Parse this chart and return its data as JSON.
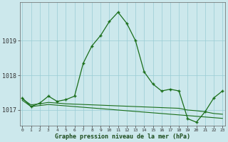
{
  "title": "Graphe pression niveau de la mer (hPa)",
  "background_color": "#cce8ec",
  "grid_color": "#99ccd4",
  "line_color": "#1a6e1a",
  "x": [
    0,
    1,
    2,
    3,
    4,
    5,
    6,
    7,
    8,
    9,
    10,
    11,
    12,
    13,
    14,
    15,
    16,
    17,
    18,
    19,
    20,
    21,
    22,
    23
  ],
  "y_line1": [
    1017.35,
    1017.1,
    1017.2,
    1017.4,
    1017.25,
    1017.3,
    1017.4,
    1018.35,
    1018.85,
    1019.15,
    1019.55,
    1019.82,
    1019.5,
    1019.0,
    1018.1,
    1017.75,
    1017.55,
    1017.6,
    1017.55,
    1016.75,
    1016.65,
    1016.95,
    1017.35,
    1017.55
  ],
  "y_line2": [
    1017.32,
    1017.15,
    1017.18,
    1017.22,
    1017.2,
    1017.18,
    1017.17,
    1017.16,
    1017.15,
    1017.14,
    1017.13,
    1017.12,
    1017.11,
    1017.1,
    1017.09,
    1017.08,
    1017.07,
    1017.06,
    1017.05,
    1017.0,
    1016.98,
    1016.95,
    1016.9,
    1016.88
  ],
  "y_line3": [
    1017.28,
    1017.1,
    1017.13,
    1017.16,
    1017.14,
    1017.12,
    1017.1,
    1017.08,
    1017.06,
    1017.04,
    1017.02,
    1017.0,
    1016.98,
    1016.96,
    1016.94,
    1016.92,
    1016.9,
    1016.88,
    1016.86,
    1016.84,
    1016.82,
    1016.8,
    1016.78,
    1016.76
  ],
  "ylim": [
    1016.55,
    1020.1
  ],
  "yticks": [
    1017.0,
    1018.0,
    1019.0
  ],
  "ylabel_texts": [
    "1017",
    "1018",
    "1019"
  ],
  "xlabel_texts": [
    "0",
    "1",
    "2",
    "3",
    "4",
    "5",
    "6",
    "7",
    "8",
    "9",
    "10",
    "11",
    "12",
    "13",
    "14",
    "15",
    "16",
    "17",
    "18",
    "19",
    "20",
    "21",
    "22",
    "23"
  ],
  "top_label": "1019",
  "figsize": [
    3.2,
    2.0
  ],
  "dpi": 100
}
